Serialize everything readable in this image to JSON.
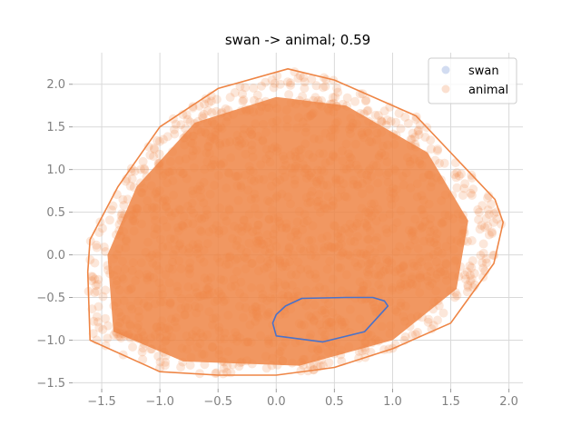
{
  "chart_data": {
    "type": "scatter",
    "title": "swan -> animal; 0.59",
    "xlabel": "",
    "ylabel": "",
    "xlim": [
      -1.75,
      2.12
    ],
    "ylim": [
      -1.57,
      2.37
    ],
    "xticks": [
      -1.5,
      -1.0,
      -0.5,
      0.0,
      0.5,
      1.0,
      1.5,
      2.0
    ],
    "xtick_labels": [
      "−1.5",
      "−1.0",
      "−0.5",
      "0.0",
      "0.5",
      "1.0",
      "1.5",
      "2.0"
    ],
    "yticks": [
      -1.5,
      -1.0,
      -0.5,
      0.0,
      0.5,
      1.0,
      1.5,
      2.0
    ],
    "ytick_labels": [
      "−1.5",
      "−1.0",
      "−0.5",
      "0.0",
      "0.5",
      "1.0",
      "1.5",
      "2.0"
    ],
    "grid": true,
    "legend_position": "top-right",
    "series": [
      {
        "name": "swan",
        "color": "#4a72c9",
        "hull": [
          [
            0.22,
            -0.51
          ],
          [
            0.6,
            -0.5
          ],
          [
            0.83,
            -0.5
          ],
          [
            0.93,
            -0.54
          ],
          [
            0.96,
            -0.6
          ],
          [
            0.76,
            -0.9
          ],
          [
            0.4,
            -1.02
          ],
          [
            0.0,
            -0.95
          ],
          [
            -0.03,
            -0.8
          ],
          [
            0.0,
            -0.7
          ],
          [
            0.08,
            -0.6
          ]
        ]
      },
      {
        "name": "animal",
        "color": "#ee8545",
        "hull": [
          [
            0.1,
            2.18
          ],
          [
            -0.5,
            1.95
          ],
          [
            -1.0,
            1.5
          ],
          [
            -1.36,
            0.8
          ],
          [
            -1.6,
            0.18
          ],
          [
            -1.62,
            -0.2
          ],
          [
            -1.6,
            -1.0
          ],
          [
            -1.0,
            -1.37
          ],
          [
            -0.5,
            -1.41
          ],
          [
            0.0,
            -1.41
          ],
          [
            0.5,
            -1.32
          ],
          [
            1.0,
            -1.1
          ],
          [
            1.5,
            -0.8
          ],
          [
            1.87,
            -0.1
          ],
          [
            1.95,
            0.38
          ],
          [
            1.88,
            0.65
          ],
          [
            1.2,
            1.63
          ],
          [
            0.5,
            2.05
          ]
        ]
      }
    ]
  }
}
